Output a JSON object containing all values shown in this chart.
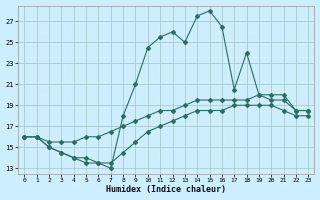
{
  "xlabel": "Humidex (Indice chaleur)",
  "bg_color": "#cceeff",
  "grid_color": "#aacccc",
  "line_color": "#2d6e5e",
  "xlim": [
    -0.5,
    23.5
  ],
  "ylim": [
    12.5,
    28.5
  ],
  "yticks": [
    13,
    15,
    17,
    19,
    21,
    23,
    25,
    27
  ],
  "xticks": [
    0,
    1,
    2,
    3,
    4,
    5,
    6,
    7,
    8,
    9,
    10,
    11,
    12,
    13,
    14,
    15,
    16,
    17,
    18,
    19,
    20,
    21,
    22,
    23
  ],
  "line1_x": [
    0,
    1,
    2,
    3,
    4,
    5,
    6,
    7,
    8,
    9,
    10,
    11,
    12,
    13,
    14,
    15,
    16,
    17,
    18,
    19,
    20,
    21,
    22,
    23
  ],
  "line1_y": [
    16.0,
    16.0,
    15.0,
    14.5,
    14.0,
    14.0,
    13.5,
    13.0,
    18.0,
    21.0,
    24.5,
    25.5,
    26.0,
    25.0,
    27.5,
    28.0,
    26.5,
    20.5,
    24.0,
    20.0,
    19.5,
    19.5,
    18.5,
    18.5
  ],
  "line2_x": [
    0,
    1,
    2,
    3,
    4,
    5,
    6,
    7,
    8,
    9,
    10,
    11,
    12,
    13,
    14,
    15,
    16,
    17,
    18,
    19,
    20,
    21,
    22,
    23
  ],
  "line2_y": [
    16.0,
    16.0,
    15.5,
    15.5,
    15.5,
    16.0,
    16.0,
    16.5,
    17.0,
    17.5,
    18.0,
    18.5,
    18.5,
    19.0,
    19.5,
    19.5,
    19.5,
    19.5,
    19.5,
    20.0,
    20.0,
    20.0,
    18.5,
    18.5
  ],
  "line3_x": [
    0,
    1,
    2,
    3,
    4,
    5,
    6,
    7,
    8,
    9,
    10,
    11,
    12,
    13,
    14,
    15,
    16,
    17,
    18,
    19,
    20,
    21,
    22,
    23
  ],
  "line3_y": [
    16.0,
    16.0,
    15.0,
    14.5,
    14.0,
    13.5,
    13.5,
    13.5,
    14.5,
    15.5,
    16.5,
    17.0,
    17.5,
    18.0,
    18.5,
    18.5,
    18.5,
    19.0,
    19.0,
    19.0,
    19.0,
    18.5,
    18.0,
    18.0
  ]
}
